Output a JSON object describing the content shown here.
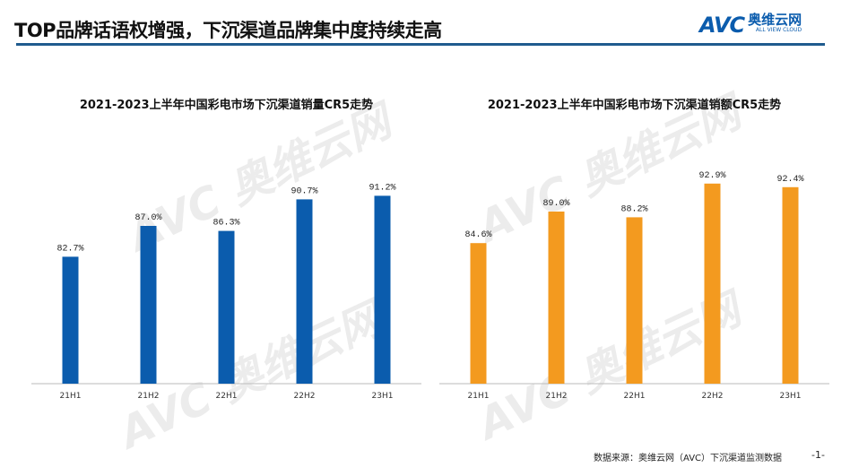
{
  "header": {
    "title": "TOP品牌话语权增强，下沉渠道品牌集中度持续走高",
    "logo_text": "AVC",
    "logo_cn": "奥维云网",
    "logo_en": "ALL VIEW CLOUD"
  },
  "chart_data": [
    {
      "type": "bar",
      "title": "2021-2023上半年中国彩电市场下沉渠道销量CR5走势",
      "categories": [
        "21H1",
        "21H2",
        "22H1",
        "22H2",
        "23H1"
      ],
      "values": [
        82.7,
        87.0,
        86.3,
        90.7,
        91.2
      ],
      "labels": [
        "82.7%",
        "87.0%",
        "86.3%",
        "90.7%",
        "91.2%"
      ],
      "color": "#0b5cad",
      "ylim": [
        65,
        95
      ],
      "unit": "%"
    },
    {
      "type": "bar",
      "title": "2021-2023上半年中国彩电市场下沉渠道销额CR5走势",
      "categories": [
        "21H1",
        "21H2",
        "22H1",
        "22H2",
        "23H1"
      ],
      "values": [
        84.6,
        89.0,
        88.2,
        92.9,
        92.4
      ],
      "labels": [
        "84.6%",
        "89.0%",
        "88.2%",
        "92.9%",
        "92.4%"
      ],
      "color": "#f39a1f",
      "ylim": [
        65,
        95
      ],
      "unit": "%"
    }
  ],
  "footer": {
    "source": "数据来源：奥维云网（AVC）下沉渠道监测数据",
    "page": "-1-"
  }
}
